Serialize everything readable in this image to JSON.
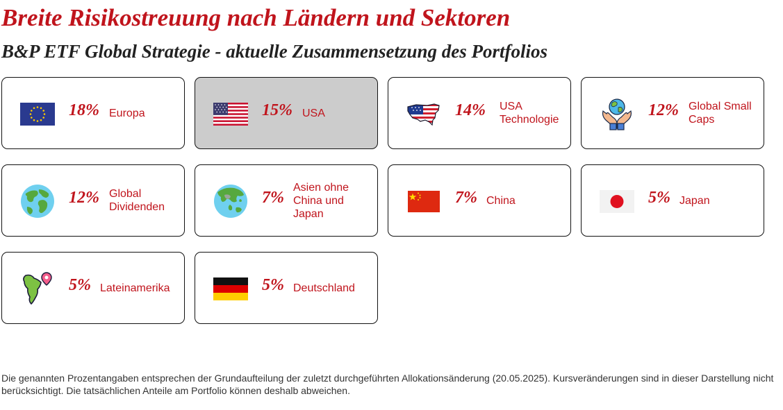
{
  "header": {
    "title": "Breite Risikostreuung nach Ländern und Sektoren",
    "subtitle": "B&P ETF Global Strategie - aktuelle Zusammensetzung des Portfolios"
  },
  "colors": {
    "accent": "#c0141c",
    "selected_card": "#cccccc",
    "border": "#111111"
  },
  "cards": [
    {
      "percent": "18%",
      "label": "Europa",
      "icon": "eu-flag-icon"
    },
    {
      "percent": "15%",
      "label": "USA",
      "icon": "us-flag-icon",
      "selected": true
    },
    {
      "percent": "14%",
      "label": "USA Technologie",
      "icon": "usa-map-icon"
    },
    {
      "percent": "12%",
      "label": "Global Small Caps",
      "icon": "hands-globe-icon"
    },
    {
      "percent": "12%",
      "label": "Global Dividenden",
      "icon": "globe-icon"
    },
    {
      "percent": "7%",
      "label": "Asien ohne China und Japan",
      "icon": "asia-globe-icon"
    },
    {
      "percent": "7%",
      "label": "China",
      "icon": "china-flag-icon"
    },
    {
      "percent": "5%",
      "label": "Japan",
      "icon": "japan-flag-icon"
    },
    {
      "percent": "5%",
      "label": "Lateinamerika",
      "icon": "latin-america-map-icon"
    },
    {
      "percent": "5%",
      "label": "Deutschland",
      "icon": "germany-flag-icon"
    }
  ],
  "footnote": "Die genannten Prozentangaben entsprechen der Grundaufteilung der zuletzt durchgeführten Allokationsänderung (20.05.2025). Kursveränderungen sind in dieser Darstellung nicht berücksichtigt. Die tatsächlichen Anteile am Portfolio können deshalb abweichen."
}
